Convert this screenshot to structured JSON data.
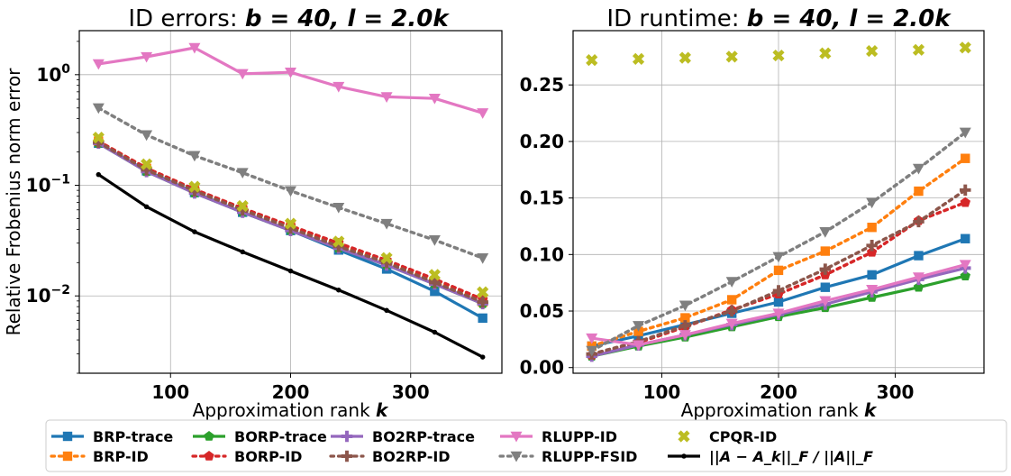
{
  "colors": {
    "BRP-trace": "#1f77b4",
    "BRP-ID": "#ff7f0e",
    "BORP-trace": "#2ca02c",
    "BORP-ID": "#d62728",
    "BO2RP-trace": "#9467bd",
    "BO2RP-ID": "#8c564b",
    "RLUPP-ID": "#e377c2",
    "RLUPP-FSID": "#7f7f7f",
    "CPQR-ID": "#bcbd22",
    "ref": "#000000"
  },
  "legend": {
    "placement": "bottom",
    "items": [
      {
        "label": "BRP-trace",
        "series": "BRP-trace",
        "line": "solid",
        "marker": "square"
      },
      {
        "label": "BRP-ID",
        "series": "BRP-ID",
        "line": "dotted",
        "marker": "square"
      },
      {
        "label": "BORP-trace",
        "series": "BORP-trace",
        "line": "solid",
        "marker": "pentagon"
      },
      {
        "label": "BORP-ID",
        "series": "BORP-ID",
        "line": "dotted",
        "marker": "pentagon"
      },
      {
        "label": "BO2RP-trace",
        "series": "BO2RP-trace",
        "line": "solid",
        "marker": "plus"
      },
      {
        "label": "BO2RP-ID",
        "series": "BO2RP-ID",
        "line": "dotted",
        "marker": "plus"
      },
      {
        "label": "RLUPP-ID",
        "series": "RLUPP-ID",
        "line": "solid",
        "marker": "tri-down"
      },
      {
        "label": "RLUPP-FSID",
        "series": "RLUPP-FSID",
        "line": "dotted",
        "marker": "tri-down"
      },
      {
        "label": "CPQR-ID",
        "series": "CPQR-ID",
        "line": "none",
        "marker": "x"
      },
      {
        "label": "||A − A_k||_F / ||A||_F",
        "series": "ref",
        "line": "solid",
        "marker": "dot"
      }
    ]
  },
  "chart_data": [
    {
      "type": "line",
      "title_prefix": "ID errors: ",
      "title_math": "b = 40, l = 2.0k",
      "xlabel": "Approximation rank",
      "xlabel_math": "k",
      "ylabel": "Relative Frobenius norm error",
      "yscale": "log",
      "xlim": [
        24,
        376
      ],
      "ylim": [
        0.002,
        2.5
      ],
      "xticks": [
        100,
        200,
        300
      ],
      "yticks": [
        {
          "value": 1,
          "mant": "10",
          "exp": "0"
        },
        {
          "value": 0.1,
          "mant": "10",
          "exp": "−1"
        },
        {
          "value": 0.01,
          "mant": "10",
          "exp": "−2"
        }
      ],
      "grid": true,
      "x": [
        40,
        80,
        120,
        160,
        200,
        240,
        280,
        320,
        360
      ],
      "series": [
        {
          "name": "BRP-trace",
          "values": [
            0.24,
            0.135,
            0.086,
            0.057,
            0.039,
            0.026,
            0.0175,
            0.011,
            0.0063
          ]
        },
        {
          "name": "BRP-ID",
          "values": [
            0.25,
            0.142,
            0.091,
            0.061,
            0.042,
            0.029,
            0.02,
            0.0135,
            0.0088
          ]
        },
        {
          "name": "BORP-trace",
          "values": [
            0.24,
            0.133,
            0.085,
            0.057,
            0.039,
            0.027,
            0.019,
            0.0128,
            0.0085
          ]
        },
        {
          "name": "BORP-ID",
          "values": [
            0.25,
            0.143,
            0.092,
            0.062,
            0.043,
            0.03,
            0.021,
            0.0142,
            0.0093
          ]
        },
        {
          "name": "BO2RP-trace",
          "values": [
            0.24,
            0.133,
            0.085,
            0.057,
            0.039,
            0.027,
            0.019,
            0.0128,
            0.0085
          ]
        },
        {
          "name": "BO2RP-ID",
          "values": [
            0.245,
            0.138,
            0.089,
            0.06,
            0.041,
            0.028,
            0.02,
            0.0132,
            0.0088
          ]
        },
        {
          "name": "RLUPP-ID",
          "values": [
            1.25,
            1.45,
            1.75,
            1.02,
            1.05,
            0.78,
            0.63,
            0.61,
            0.45
          ]
        },
        {
          "name": "RLUPP-FSID",
          "values": [
            0.5,
            0.285,
            0.185,
            0.13,
            0.089,
            0.063,
            0.045,
            0.032,
            0.022
          ]
        },
        {
          "name": "CPQR-ID",
          "values": [
            0.27,
            0.155,
            0.097,
            0.065,
            0.045,
            0.031,
            0.022,
            0.0155,
            0.0108
          ]
        },
        {
          "name": "ref",
          "values": [
            0.125,
            0.064,
            0.038,
            0.025,
            0.0168,
            0.0113,
            0.0074,
            0.0047,
            0.0028
          ]
        }
      ]
    },
    {
      "type": "line",
      "title_prefix": "ID runtime: ",
      "title_math": "b = 40, l = 2.0k",
      "xlabel": "Approximation rank",
      "xlabel_math": "k",
      "ylabel": "",
      "yscale": "linear",
      "xlim": [
        24,
        376
      ],
      "ylim": [
        -0.005,
        0.298
      ],
      "xticks": [
        100,
        200,
        300
      ],
      "yticks": [
        {
          "value": 0.0,
          "label": "0.00"
        },
        {
          "value": 0.05,
          "label": "0.05"
        },
        {
          "value": 0.1,
          "label": "0.10"
        },
        {
          "value": 0.15,
          "label": "0.15"
        },
        {
          "value": 0.2,
          "label": "0.20"
        },
        {
          "value": 0.25,
          "label": "0.25"
        }
      ],
      "grid": true,
      "x": [
        40,
        80,
        120,
        160,
        200,
        240,
        280,
        320,
        360
      ],
      "series": [
        {
          "name": "BRP-trace",
          "values": [
            0.019,
            0.028,
            0.038,
            0.048,
            0.058,
            0.071,
            0.082,
            0.099,
            0.114
          ]
        },
        {
          "name": "BRP-ID",
          "values": [
            0.019,
            0.032,
            0.044,
            0.06,
            0.086,
            0.103,
            0.124,
            0.156,
            0.185
          ]
        },
        {
          "name": "BORP-trace",
          "values": [
            0.01,
            0.019,
            0.027,
            0.036,
            0.045,
            0.053,
            0.062,
            0.071,
            0.081
          ]
        },
        {
          "name": "BORP-ID",
          "values": [
            0.011,
            0.022,
            0.036,
            0.051,
            0.065,
            0.082,
            0.102,
            0.13,
            0.146
          ]
        },
        {
          "name": "BO2RP-trace",
          "values": [
            0.01,
            0.02,
            0.029,
            0.038,
            0.047,
            0.056,
            0.067,
            0.078,
            0.088
          ]
        },
        {
          "name": "BO2RP-ID",
          "values": [
            0.012,
            0.023,
            0.037,
            0.05,
            0.068,
            0.087,
            0.108,
            0.129,
            0.157
          ]
        },
        {
          "name": "RLUPP-ID",
          "values": [
            0.026,
            0.02,
            0.029,
            0.039,
            0.048,
            0.059,
            0.069,
            0.08,
            0.091
          ]
        },
        {
          "name": "RLUPP-FSID",
          "values": [
            0.015,
            0.037,
            0.055,
            0.076,
            0.098,
            0.12,
            0.146,
            0.176,
            0.208
          ]
        },
        {
          "name": "CPQR-ID",
          "values": [
            0.272,
            0.273,
            0.274,
            0.275,
            0.276,
            0.278,
            0.28,
            0.281,
            0.283
          ]
        }
      ]
    }
  ]
}
